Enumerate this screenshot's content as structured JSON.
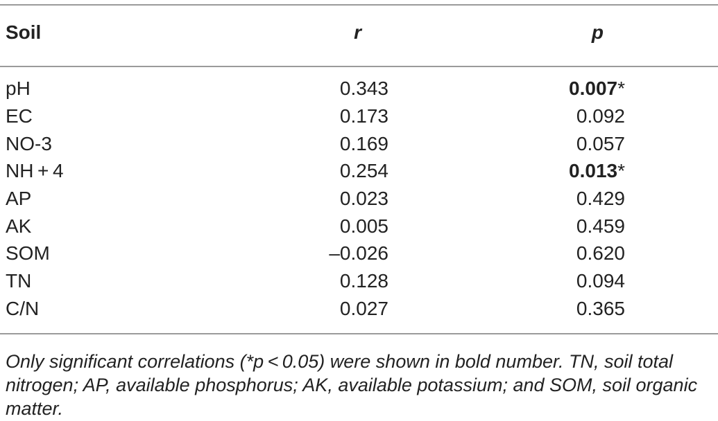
{
  "table": {
    "headers": {
      "soil": "Soil",
      "r": "r",
      "p": "p"
    },
    "rows": [
      {
        "soil": "pH",
        "r": "0.343",
        "p": "0.007",
        "marker": "*",
        "significant": true
      },
      {
        "soil": "EC",
        "r": "0.173",
        "p": "0.092",
        "significant": false
      },
      {
        "soil": "NO-3",
        "r": "0.169",
        "p": "0.057",
        "significant": false
      },
      {
        "soil": "NH + 4",
        "r": "0.254",
        "p": "0.013",
        "marker": "*",
        "significant": true
      },
      {
        "soil": "AP",
        "r": "0.023",
        "p": "0.429",
        "significant": false
      },
      {
        "soil": "AK",
        "r": "0.005",
        "p": "0.459",
        "significant": false
      },
      {
        "soil": "SOM",
        "r": "–0.026",
        "p": "0.620",
        "significant": false
      },
      {
        "soil": "TN",
        "r": "0.128",
        "p": "0.094",
        "significant": false
      },
      {
        "soil": "C/N",
        "r": "0.027",
        "p": "0.365",
        "significant": false
      }
    ]
  },
  "footnote": "Only significant correlations (*p < 0.05) were shown in bold number. TN, soil total nitrogen; AP, available phosphorus; AK, available potassium; and SOM, soil organic matter.",
  "colors": {
    "text": "#222222",
    "rule": "#9a9a9a"
  }
}
